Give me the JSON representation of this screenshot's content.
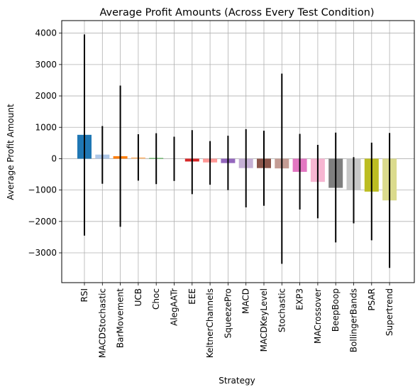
{
  "chart_data": {
    "type": "bar",
    "title": "Average Profit Amounts (Across Every Test Condition)",
    "xlabel": "Strategy",
    "ylabel": "Average Profit Amount",
    "ylim": [
      -3950,
      4400
    ],
    "yticks": [
      -3000,
      -2000,
      -1000,
      0,
      1000,
      2000,
      3000,
      4000
    ],
    "grid": true,
    "legend": "none",
    "categories": [
      "RSI",
      "MACDStochastic",
      "BarMovement",
      "UCB",
      "Choc",
      "AlegAATr",
      "EEE",
      "KeltnerChannels",
      "SqueezePro",
      "MACD",
      "MACDKeyLevel",
      "Stochastic",
      "EXP3",
      "MACrossover",
      "BeepBoop",
      "BollingerBands",
      "PSAR",
      "Supertrend"
    ],
    "values": [
      760,
      130,
      80,
      40,
      20,
      0,
      -90,
      -120,
      -140,
      -300,
      -300,
      -310,
      -420,
      -740,
      -930,
      -1010,
      -1050,
      -1330
    ],
    "error_low": [
      -2450,
      -800,
      -2170,
      -700,
      -810,
      -710,
      -1130,
      -830,
      -1000,
      -1550,
      -1500,
      -3350,
      -1620,
      -1900,
      -2670,
      -2060,
      -2600,
      -3480
    ],
    "error_high": [
      3960,
      1040,
      2330,
      780,
      810,
      700,
      910,
      560,
      730,
      940,
      890,
      2710,
      790,
      440,
      830,
      50,
      510,
      820
    ],
    "colors": [
      "#1f77b4",
      "#aec7e8",
      "#ff7f0e",
      "#ffbb78",
      "#2ca02c",
      "#98df8a",
      "#d62728",
      "#ff9896",
      "#9467bd",
      "#c5b0d5",
      "#8c564b",
      "#c49c94",
      "#e377c2",
      "#f7b6d2",
      "#7f7f7f",
      "#c7c7c7",
      "#bcbd22",
      "#dbdb8d"
    ]
  }
}
